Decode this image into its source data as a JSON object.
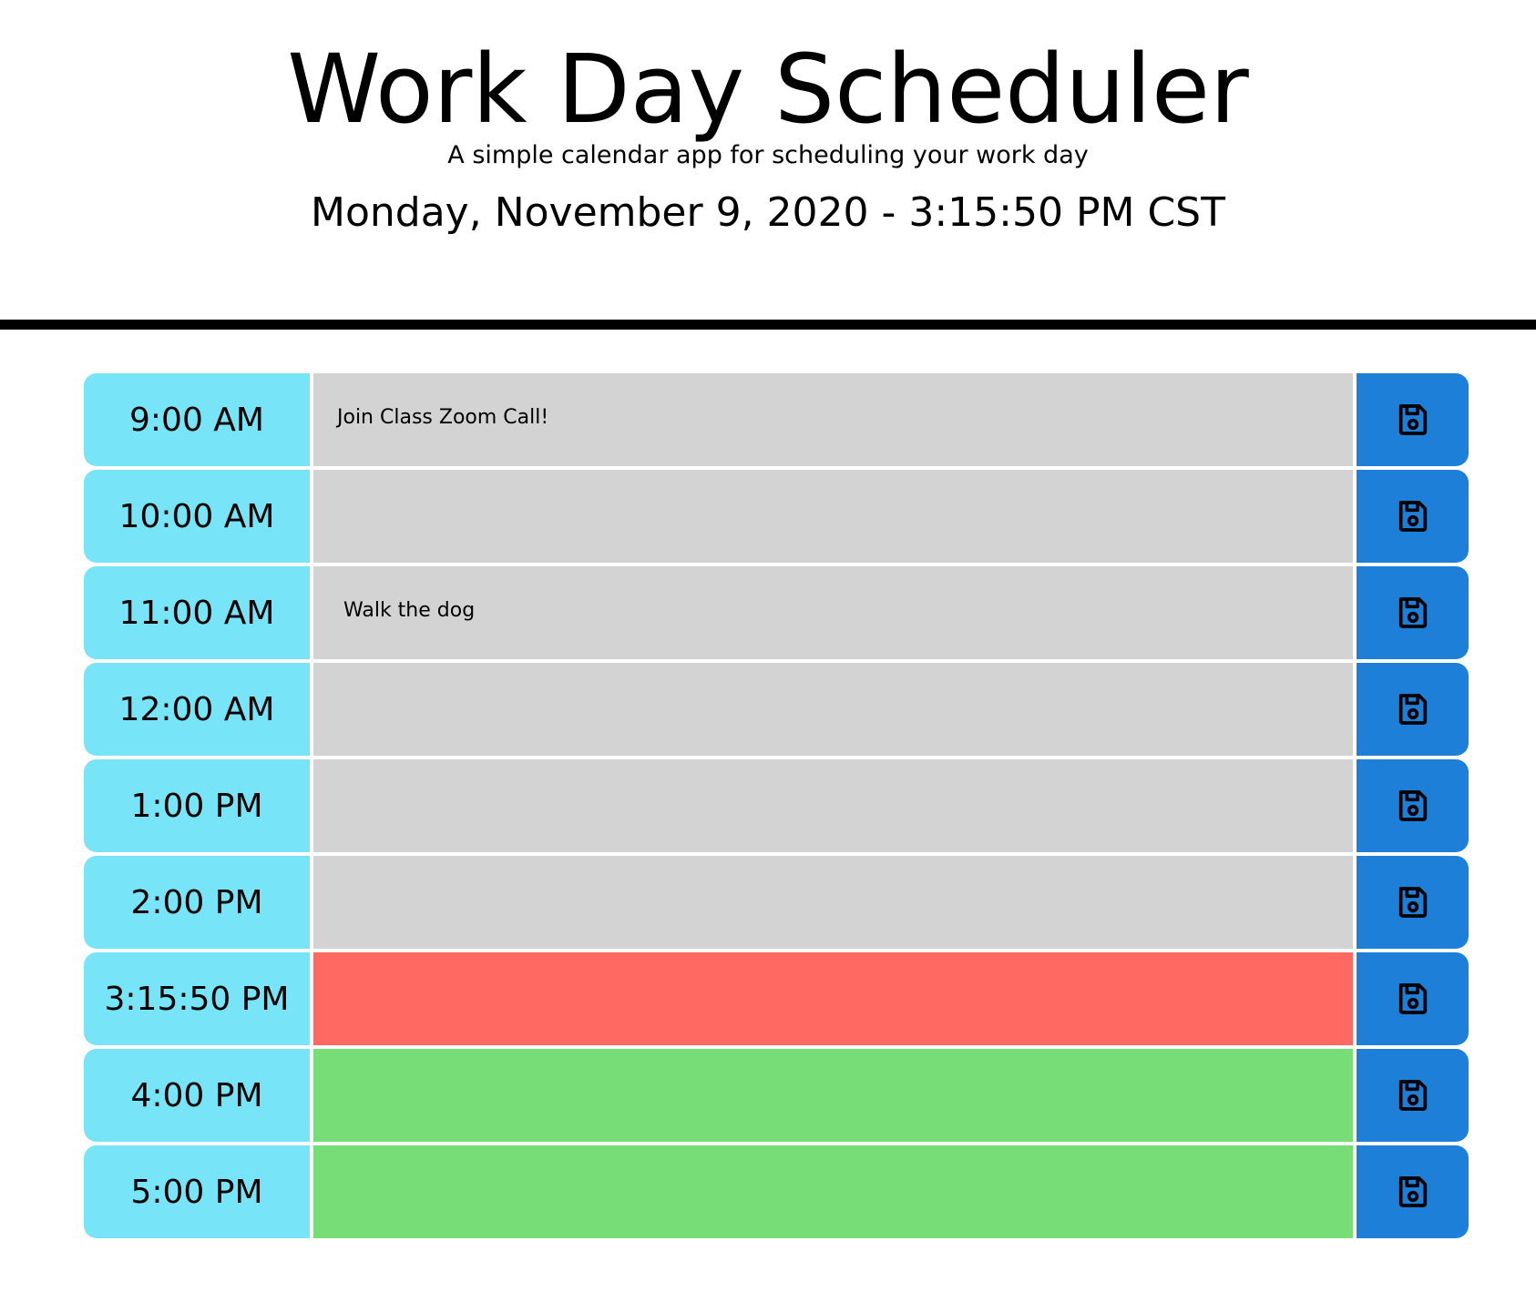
{
  "header": {
    "title": "Work Day Scheduler",
    "subtitle": "A simple calendar app for scheduling your work day",
    "current_datetime": "Monday, November 9, 2020 - 3:15:50 PM CST"
  },
  "colors": {
    "hour_bg": "#77e5f7",
    "past": "#d3d3d3",
    "present": "#ff6961",
    "future": "#77dd77",
    "save_bg": "#1d7fd8"
  },
  "schedule": {
    "rows": [
      {
        "hour": "9:00 AM",
        "task": "Join Class Zoom Call!",
        "state": "past"
      },
      {
        "hour": "10:00 AM",
        "task": "",
        "state": "past"
      },
      {
        "hour": "11:00 AM",
        "task": "Walk the dog",
        "state": "past"
      },
      {
        "hour": "12:00 AM",
        "task": "",
        "state": "past"
      },
      {
        "hour": "1:00 PM",
        "task": "",
        "state": "past"
      },
      {
        "hour": "2:00 PM",
        "task": "",
        "state": "past"
      },
      {
        "hour": "3:15:50 PM",
        "task": "",
        "state": "present"
      },
      {
        "hour": "4:00 PM",
        "task": "",
        "state": "future"
      },
      {
        "hour": "5:00 PM",
        "task": "",
        "state": "future"
      }
    ],
    "save_icon": "floppy-disk-icon"
  }
}
